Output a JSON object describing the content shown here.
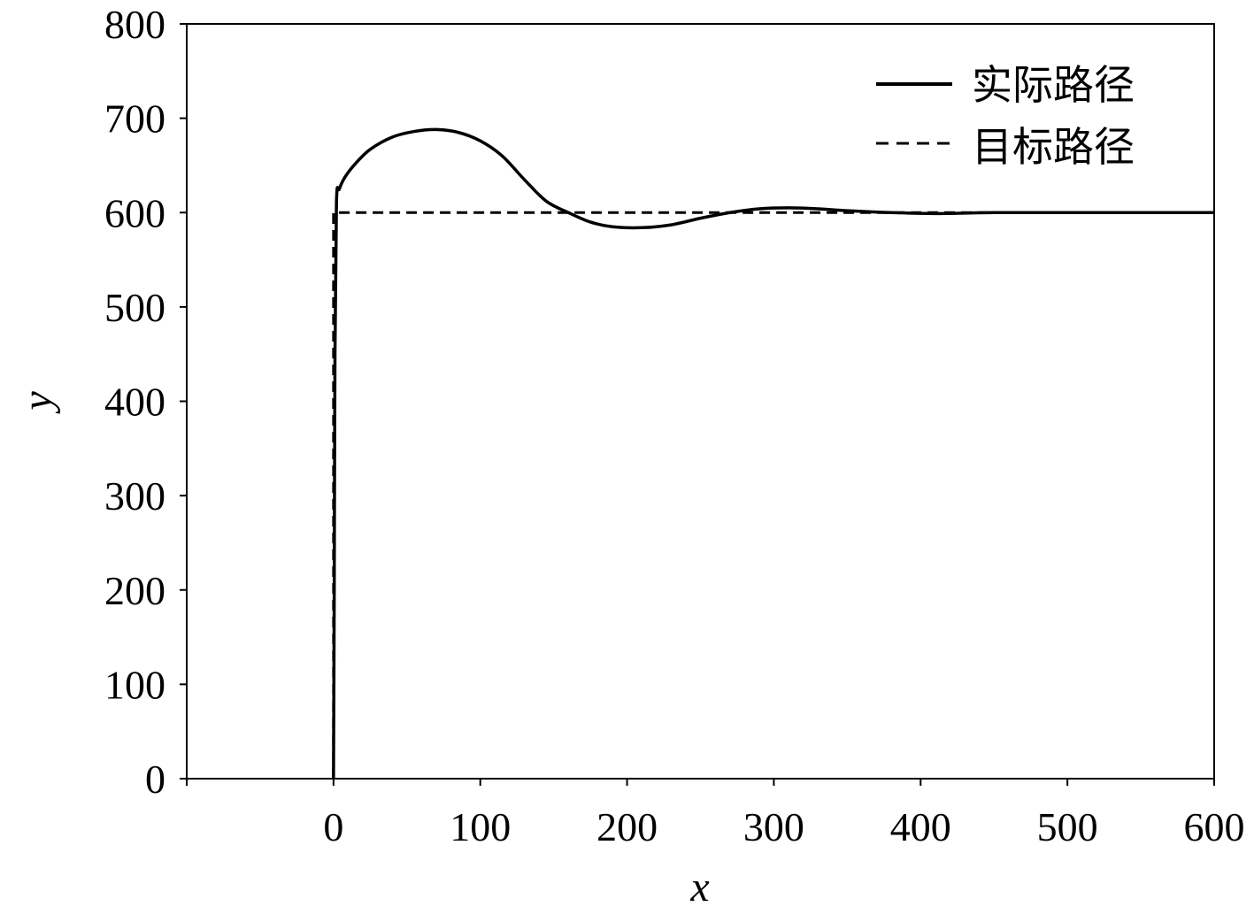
{
  "chart_data": {
    "type": "line",
    "title": "",
    "xlabel": "x",
    "ylabel": "y",
    "xlim": [
      -100,
      600
    ],
    "ylim": [
      0,
      800
    ],
    "xticks": [
      0,
      100,
      200,
      300,
      400,
      500,
      600
    ],
    "yticks": [
      0,
      100,
      200,
      300,
      400,
      500,
      600,
      700,
      800
    ],
    "xtick_labels": [
      "0",
      "100",
      "200",
      "300",
      "400",
      "500",
      "600"
    ],
    "ytick_labels": [
      "0",
      "100",
      "200",
      "300",
      "400",
      "500",
      "600",
      "700",
      "800"
    ],
    "grid": false,
    "legend_position": "top-right",
    "series": [
      {
        "name": "实际路径",
        "style": "solid",
        "color": "#000000",
        "x": [
          0,
          0.5,
          1,
          2,
          4,
          8,
          15,
          25,
          40,
          55,
          70,
          85,
          100,
          115,
          130,
          145,
          160,
          175,
          190,
          210,
          230,
          250,
          270,
          290,
          310,
          330,
          350,
          380,
          410,
          450,
          500,
          550,
          600
        ],
        "y": [
          0,
          200,
          450,
          610,
          625,
          638,
          652,
          667,
          680,
          686,
          688,
          685,
          676,
          660,
          635,
          612,
          600,
          590,
          585,
          584,
          587,
          594,
          600,
          604,
          605,
          604,
          602,
          600,
          599,
          600,
          600,
          600,
          600
        ]
      },
      {
        "name": "目标路径",
        "style": "dashed",
        "color": "#000000",
        "x": [
          0,
          0,
          0,
          600
        ],
        "y": [
          0,
          600,
          600,
          600
        ]
      }
    ]
  }
}
